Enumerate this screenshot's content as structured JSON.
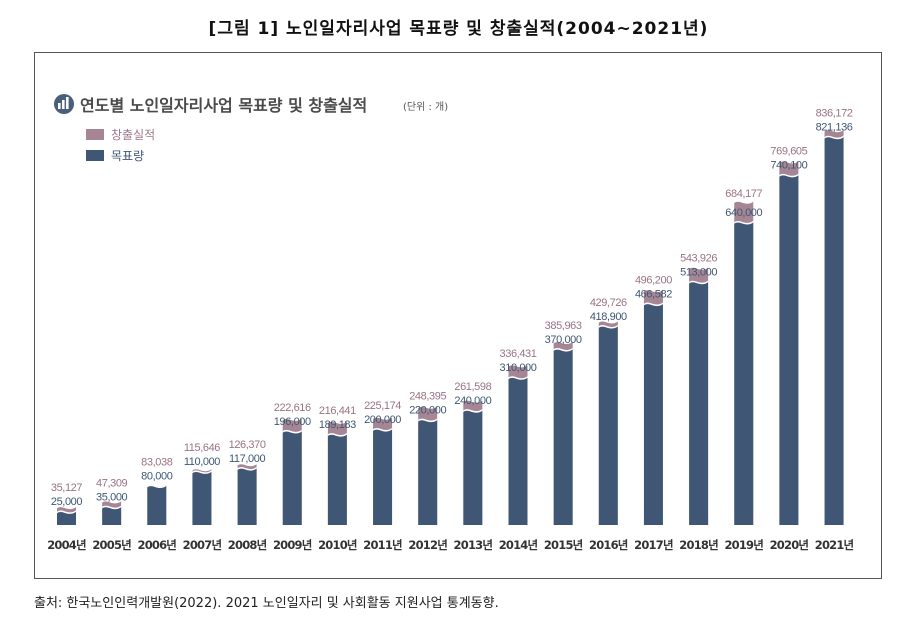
{
  "figure": {
    "title": "[그림 1] 노인일자리사업 목표량 및 창출실적(2004~2021년)",
    "source": "출처: 한국노인인력개발원(2022). 2021 노인일자리 및 사회활동 지원사업 통계동향."
  },
  "chart_data": {
    "type": "bar",
    "title": "연도별 노인일자리사업 목표량 및 창출실적",
    "unit_label": "(단위 : 개)",
    "title_icon": "bar-chart-icon",
    "categories": [
      "2004년",
      "2005년",
      "2006년",
      "2007년",
      "2008년",
      "2009년",
      "2010년",
      "2011년",
      "2012년",
      "2013년",
      "2014년",
      "2015년",
      "2016년",
      "2017년",
      "2018년",
      "2019년",
      "2020년",
      "2021년"
    ],
    "series": [
      {
        "name": "창출실적",
        "color": "#a68694",
        "values": [
          35127,
          47309,
          83038,
          115646,
          126370,
          222616,
          216441,
          225174,
          248395,
          261598,
          336431,
          385963,
          429726,
          496200,
          543926,
          684177,
          769605,
          836172
        ],
        "labels": [
          "35,127",
          "47,309",
          "83,038",
          "115,646",
          "126,370",
          "222,616",
          "216,441",
          "225,174",
          "248,395",
          "261,598",
          "336,431",
          "385,963",
          "429,726",
          "496,200",
          "543,926",
          "684,177",
          "769,605",
          "836,172"
        ]
      },
      {
        "name": "목표량",
        "color": "#3f5775",
        "values": [
          25000,
          35000,
          80000,
          110000,
          117000,
          196000,
          189183,
          200000,
          220000,
          240000,
          310000,
          370000,
          418900,
          466582,
          513000,
          640000,
          740100,
          821136
        ],
        "labels": [
          "25,000",
          "35,000",
          "80,000",
          "110,000",
          "117,000",
          "196,000",
          "189,183",
          "200,000",
          "220,000",
          "240,000",
          "310,000",
          "370,000",
          "418,900",
          "466,582",
          "513,000",
          "640,000",
          "740,100",
          "821,136"
        ]
      }
    ],
    "layout_notes": "overlaid bars: 목표량 drawn in front of 창출실적, wavy top edge",
    "legend_position": "top-left",
    "grid": false
  }
}
